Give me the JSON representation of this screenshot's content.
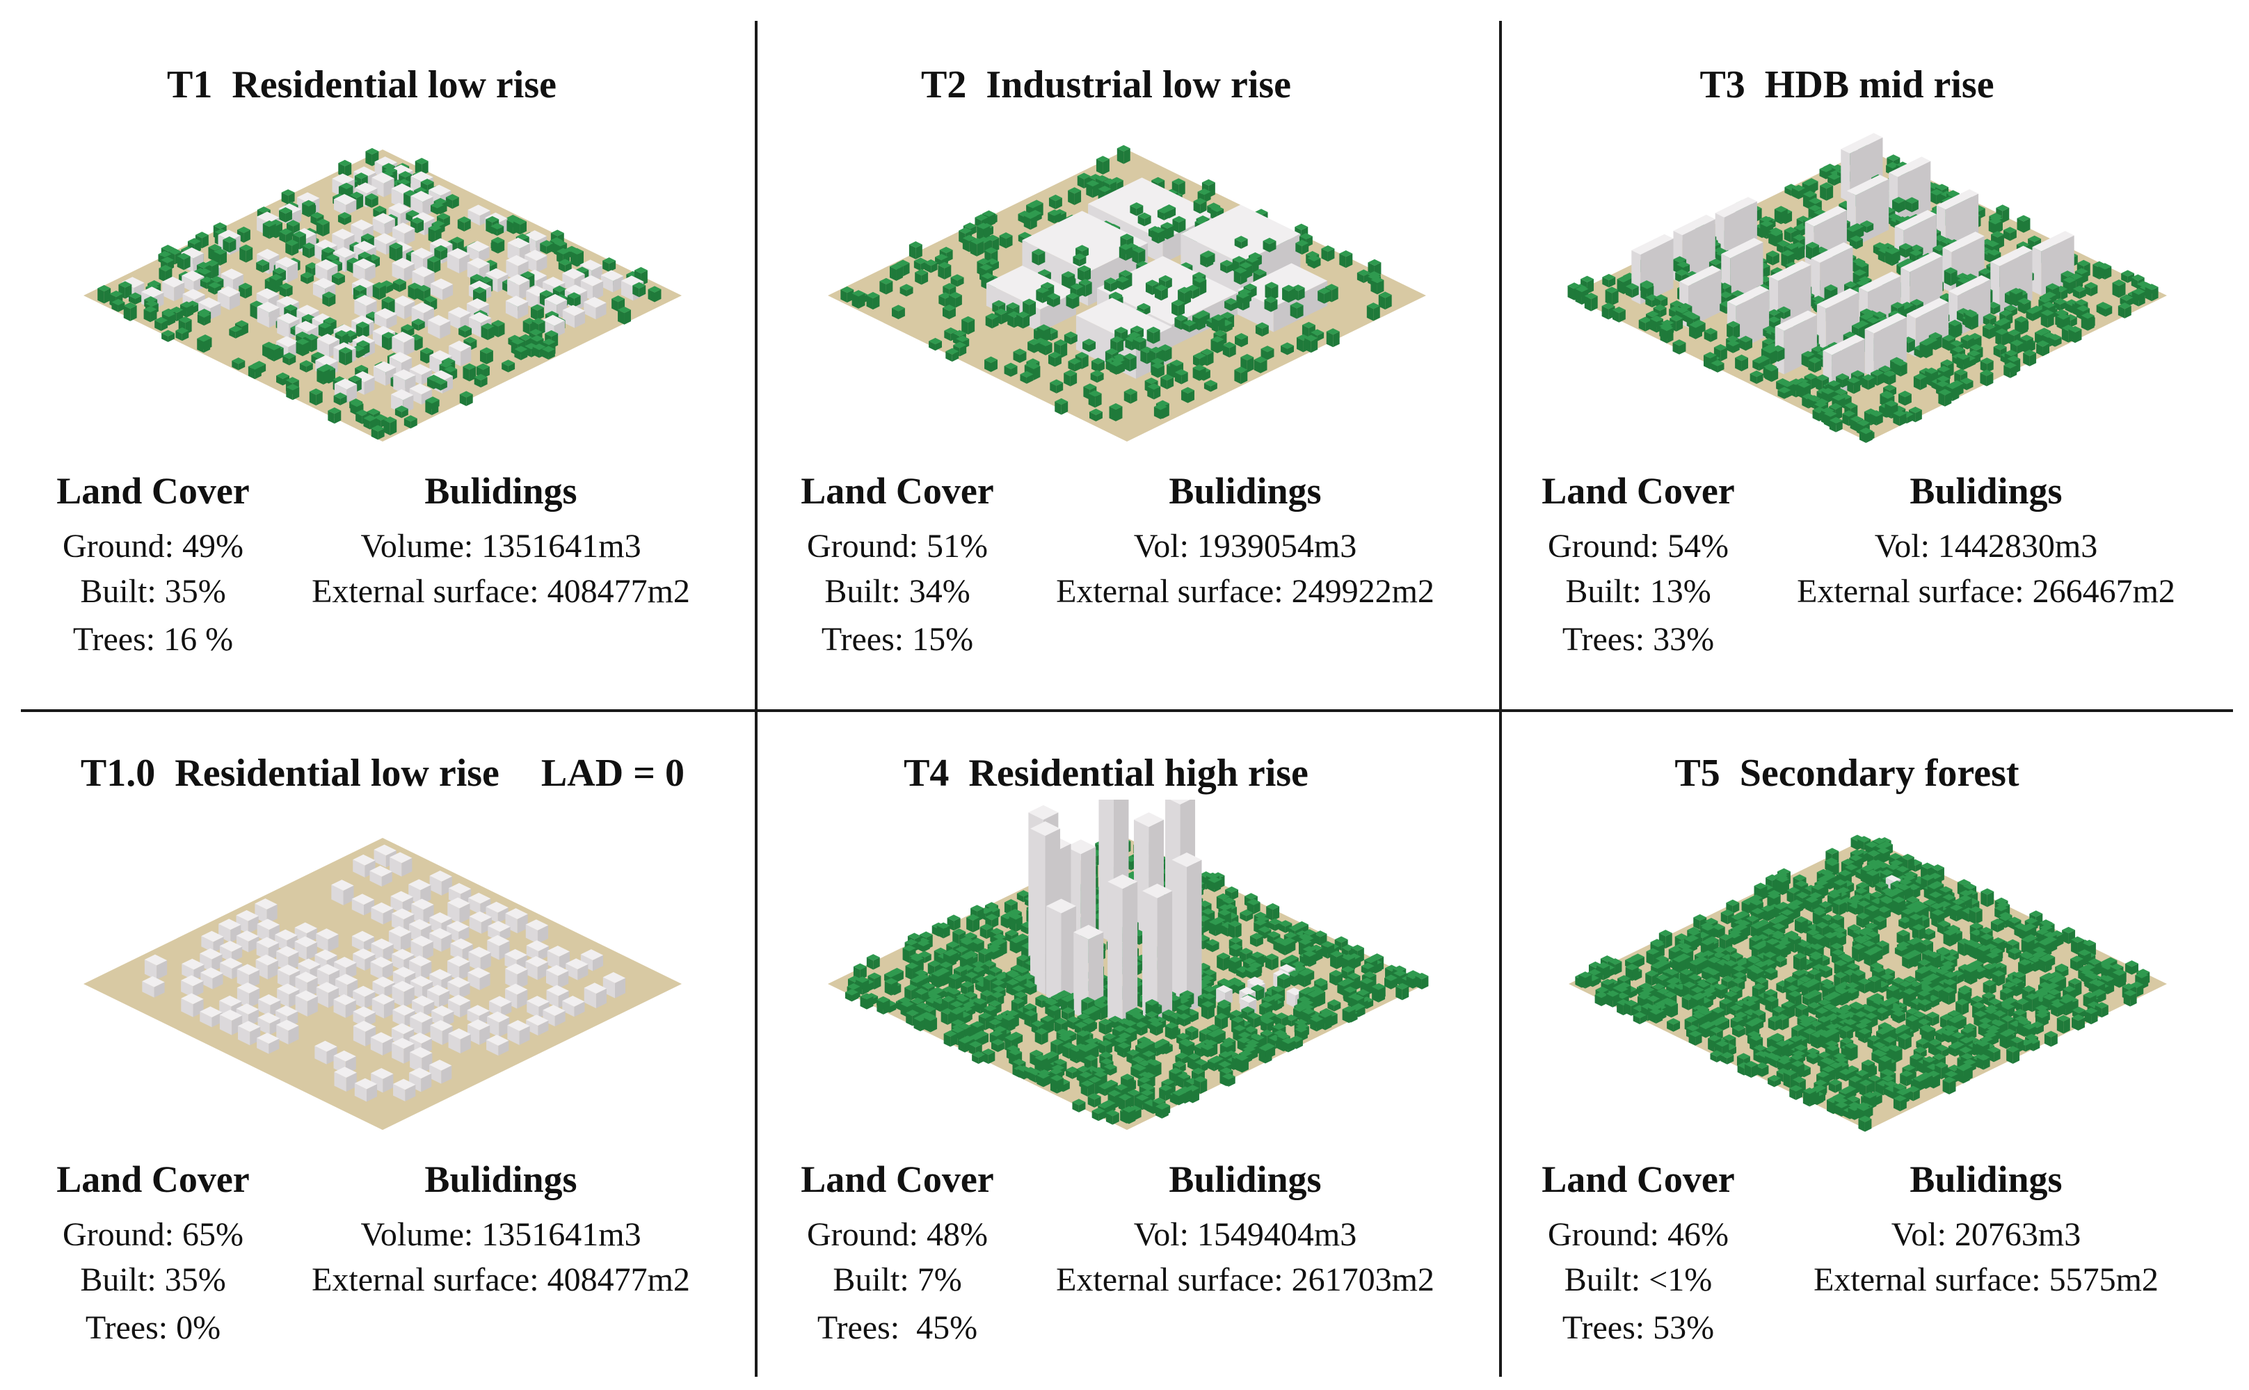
{
  "panels": [
    {
      "title": "T1  Residential low rise",
      "extra": "",
      "scene": {
        "ground": "#d8c9a3",
        "tree_fraction": 0.16,
        "building_style": "low-dense"
      },
      "land_cover": {
        "heading": "Land Cover",
        "lines": [
          "Ground: 49%",
          "Built: 35%",
          "Trees: 16 %"
        ]
      },
      "buildings": {
        "heading": "Bulidings",
        "lines": [
          "Volume: 1351641m3",
          "External surface: 408477m2"
        ]
      }
    },
    {
      "title": "T2  Industrial low rise",
      "extra": "",
      "scene": {
        "ground": "#d8c9a3",
        "tree_fraction": 0.15,
        "building_style": "industrial"
      },
      "land_cover": {
        "heading": "Land Cover",
        "lines": [
          "Ground: 51%",
          "Built: 34%",
          "Trees: 15%"
        ]
      },
      "buildings": {
        "heading": "Bulidings",
        "lines": [
          "Vol: 1939054m3",
          "External surface: 249922m2"
        ]
      }
    },
    {
      "title": "T3  HDB mid rise",
      "extra": "",
      "scene": {
        "ground": "#d8c9a3",
        "tree_fraction": 0.33,
        "building_style": "slabs"
      },
      "land_cover": {
        "heading": "Land Cover",
        "lines": [
          "Ground: 54%",
          "Built: 13%",
          "Trees: 33%"
        ]
      },
      "buildings": {
        "heading": "Bulidings",
        "lines": [
          "Vol: 1442830m3",
          "External surface: 266467m2"
        ]
      }
    },
    {
      "title": "T1.0  Residential low rise",
      "extra": "LAD = 0",
      "scene": {
        "ground": "#d8c9a3",
        "tree_fraction": 0.0,
        "building_style": "low-dense"
      },
      "land_cover": {
        "heading": "Land Cover",
        "lines": [
          "Ground: 65%",
          "Built: 35%",
          "Trees: 0%"
        ]
      },
      "buildings": {
        "heading": "Bulidings",
        "lines": [
          "Volume: 1351641m3",
          "External surface: 408477m2"
        ]
      }
    },
    {
      "title": "T4  Residential high rise",
      "extra": "",
      "scene": {
        "ground": "#d8c9a3",
        "tree_fraction": 0.45,
        "building_style": "towers"
      },
      "land_cover": {
        "heading": "Land Cover",
        "lines": [
          "Ground: 48%",
          "Built: 7%",
          "Trees:  45%"
        ]
      },
      "buildings": {
        "heading": "Bulidings",
        "lines": [
          "Vol: 1549404m3",
          "External surface: 261703m2"
        ]
      }
    },
    {
      "title": "T5  Secondary forest",
      "extra": "",
      "scene": {
        "ground": "#d8c9a3",
        "tree_fraction": 0.53,
        "building_style": "sparse"
      },
      "land_cover": {
        "heading": "Land Cover",
        "lines": [
          "Ground: 46%",
          "Built: <1%",
          "Trees: 53%"
        ]
      },
      "buildings": {
        "heading": "Bulidings",
        "lines": [
          "Vol: 20763m3",
          "External surface: 5575m2"
        ]
      }
    }
  ],
  "colors": {
    "tree": "#2f9a4f",
    "tree_dark": "#1f7a3a",
    "building_top": "#f1eff0",
    "building_side": "#c9c6c8",
    "building_front": "#dcd9db"
  }
}
